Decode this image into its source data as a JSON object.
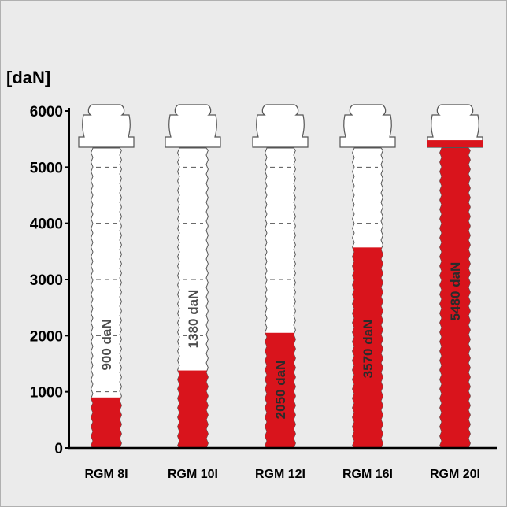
{
  "colors": {
    "background": "#ebebeb",
    "border": "#b0b0b0",
    "fill": "#d9141c",
    "bolt": "#ffffff",
    "bolt_outline": "#555555",
    "axis": "#000000",
    "label_on_white": "#4d4d4d",
    "label_on_red": "#2b2b2b",
    "grid_dash": "#555555"
  },
  "chart_data": {
    "type": "bar",
    "ylabel": "[daN]",
    "ylim": [
      0,
      6000
    ],
    "yticks": [
      0,
      1000,
      2000,
      3000,
      4000,
      5000,
      6000
    ],
    "grid": "dashed lines inside bolts",
    "categories": [
      "RGM 8I",
      "RGM 10I",
      "RGM 12I",
      "RGM 16I",
      "RGM 20I"
    ],
    "values": [
      900,
      1380,
      2050,
      3570,
      5480
    ],
    "labels": [
      "900 daN",
      "1380 daN",
      "2050 daN",
      "3570 daN",
      "5480 daN"
    ]
  }
}
